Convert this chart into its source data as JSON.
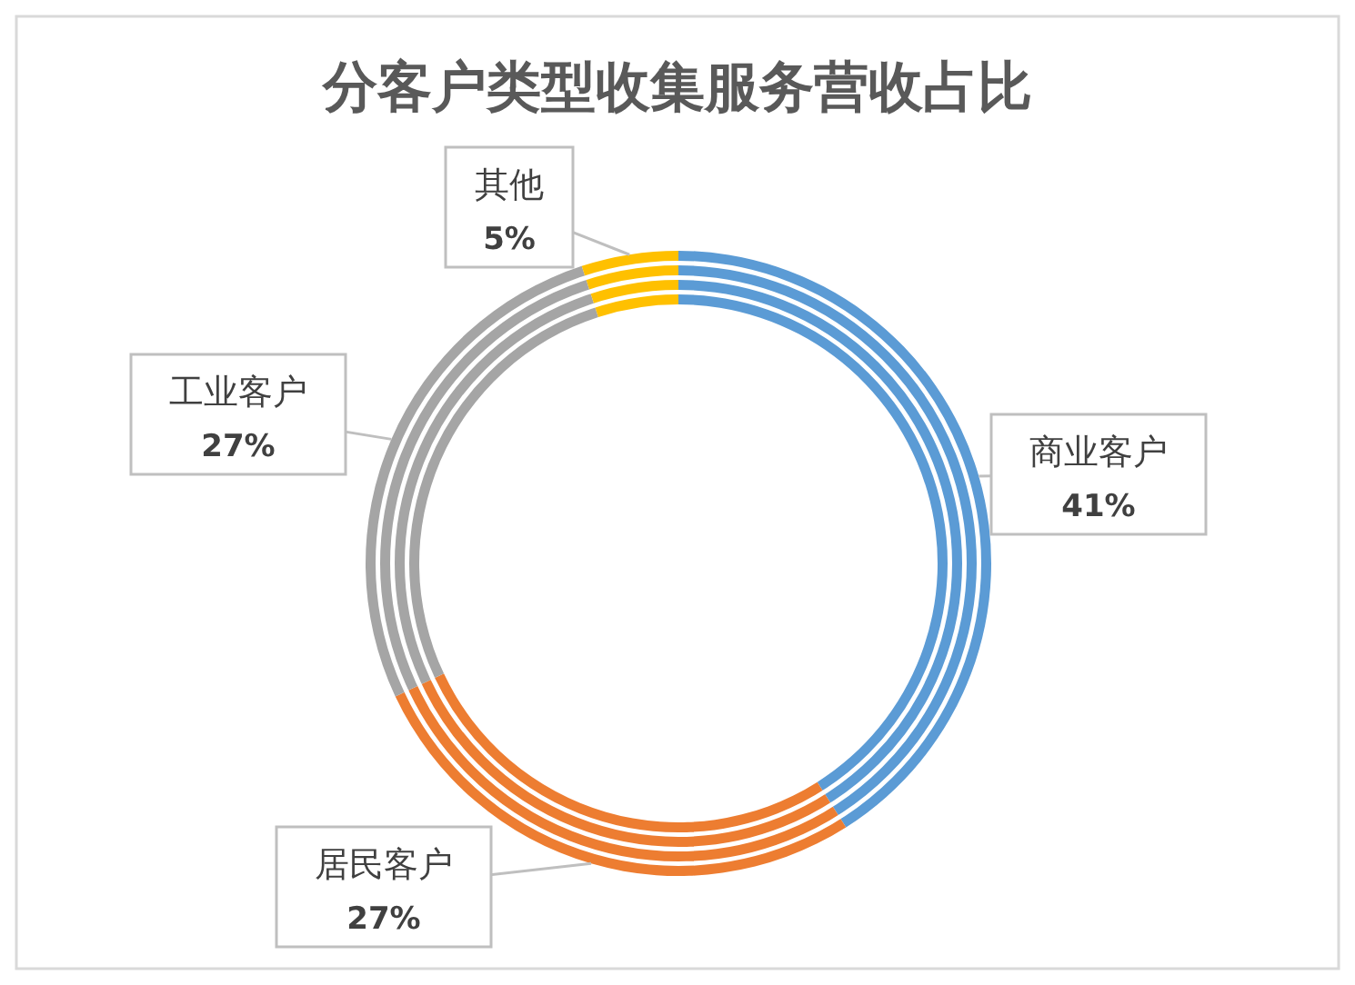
{
  "chart_data": {
    "type": "donut",
    "title": "分客户类型收集服务营收占比",
    "categories": [
      "商业客户",
      "居民客户",
      "工业客户",
      "其他"
    ],
    "colors": [
      "#5b9bd5",
      "#ed7d31",
      "#a5a5a5",
      "#ffc000"
    ],
    "values": [
      41,
      27,
      27,
      5
    ],
    "value_labels": [
      "41%",
      "27%",
      "27%",
      "5%"
    ]
  }
}
